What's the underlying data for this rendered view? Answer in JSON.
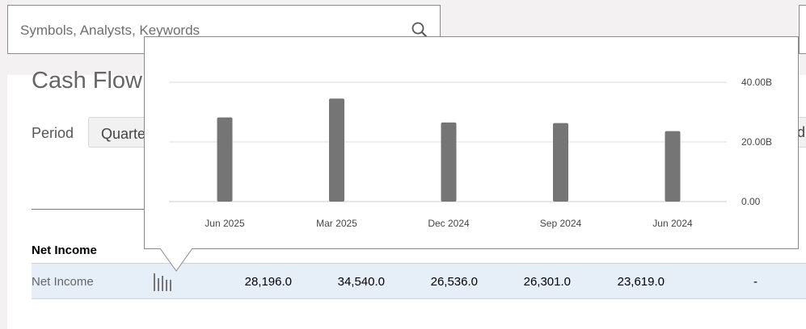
{
  "search": {
    "placeholder": "Symbols, Analysts, Keywords",
    "icon": "search-icon"
  },
  "page": {
    "title": "Cash Flow"
  },
  "period": {
    "label": "Period",
    "selected": "Quarterly"
  },
  "right_control": {
    "text": "d"
  },
  "table": {
    "section_heading": "Net Income",
    "row": {
      "label": "Net Income",
      "icon": "bar-chart-icon",
      "values": [
        "28,196.0",
        "34,540.0",
        "26,536.0",
        "26,301.0",
        "23,619.0",
        "-"
      ]
    }
  },
  "chart_data": {
    "type": "bar",
    "categories": [
      "Jun 2025",
      "Mar 2025",
      "Dec 2024",
      "Sep 2024",
      "Jun 2024"
    ],
    "values": [
      28196.0,
      34540.0,
      26536.0,
      26301.0,
      23619.0
    ],
    "units_note": "values in millions; axis in billions",
    "ylim": [
      0,
      40000
    ],
    "y_ticks": [
      "0.00",
      "20.00B",
      "40.00B"
    ],
    "y_tick_values": [
      0,
      20000,
      40000
    ],
    "bar_color": "#757575",
    "grid_color": "#dddddd",
    "grid": true
  }
}
